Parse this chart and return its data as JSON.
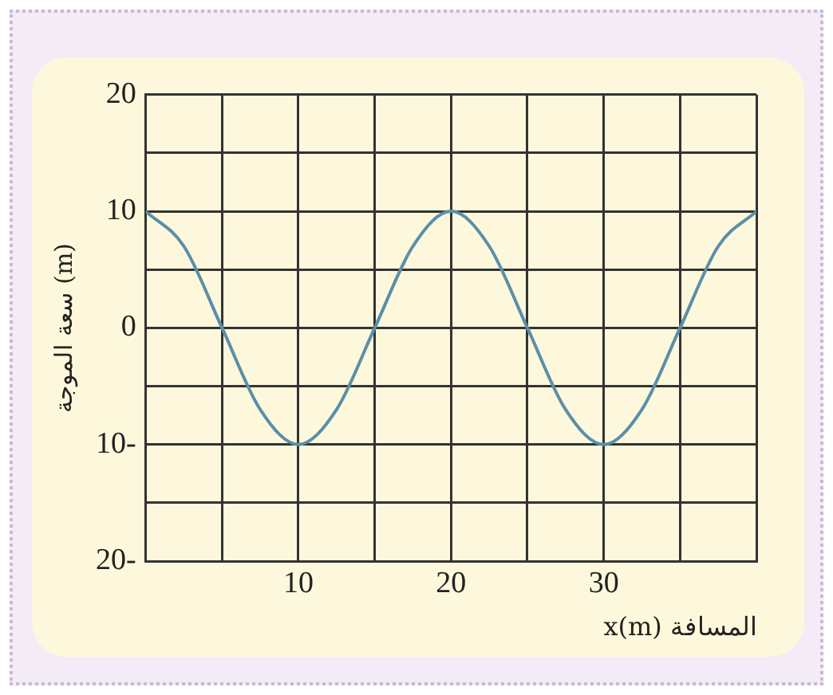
{
  "chart_data": {
    "type": "line",
    "xlabel": "x(m) المسافة",
    "ylabel": "سعة الموجة (m)",
    "x": [
      0,
      2.5,
      5,
      7.5,
      10,
      12.5,
      15,
      17.5,
      20,
      22.5,
      25,
      27.5,
      30,
      32.5,
      35,
      37.5,
      40
    ],
    "series": [
      {
        "color": "#5b8fa8",
        "values": [
          10,
          7,
          0,
          -7,
          -10,
          -7,
          0,
          7,
          10,
          7,
          0,
          -7,
          -10,
          -7,
          0,
          7,
          10
        ]
      }
    ],
    "xlim": [
      0,
      40
    ],
    "xticks": [
      {
        "value": 0,
        "label": null
      },
      {
        "value": 5,
        "label": null
      },
      10,
      {
        "value": 15,
        "label": null
      },
      20,
      {
        "value": 25,
        "label": null
      },
      30,
      {
        "value": 35,
        "label": null
      },
      {
        "value": 40,
        "label": null
      }
    ],
    "ylim": [
      -20,
      20
    ],
    "yticks": [
      {
        "value": -20,
        "label": "20-"
      },
      {
        "value": -15,
        "label": null
      },
      {
        "value": -10,
        "label": "10-"
      },
      {
        "value": -5,
        "label": null
      },
      0,
      {
        "value": 5,
        "label": null
      },
      10,
      {
        "value": 15,
        "label": null
      },
      20
    ],
    "grid": true,
    "legend": false,
    "marker": "none",
    "line_style": "solid"
  }
}
